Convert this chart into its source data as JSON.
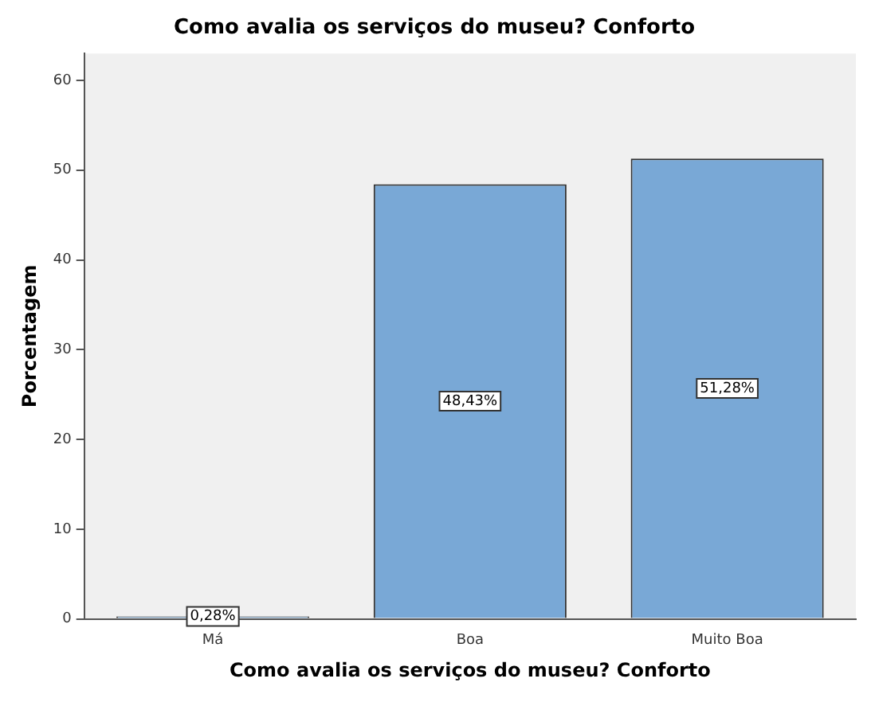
{
  "chart_data": {
    "type": "bar",
    "title": "Como avalia os serviços do museu? Conforto",
    "xlabel": "Como avalia os serviços do museu? Conforto",
    "ylabel": "Porcentagem",
    "categories": [
      "Má",
      "Boa",
      "Muito Boa"
    ],
    "values": [
      0.28,
      48.43,
      51.28
    ],
    "value_labels": [
      "0,28%",
      "48,43%",
      "51,28%"
    ],
    "color": "#79a8d6",
    "ylim": [
      0,
      63
    ],
    "yticks": [
      0,
      10,
      20,
      30,
      40,
      50,
      60
    ],
    "grid": false,
    "legend": false
  }
}
